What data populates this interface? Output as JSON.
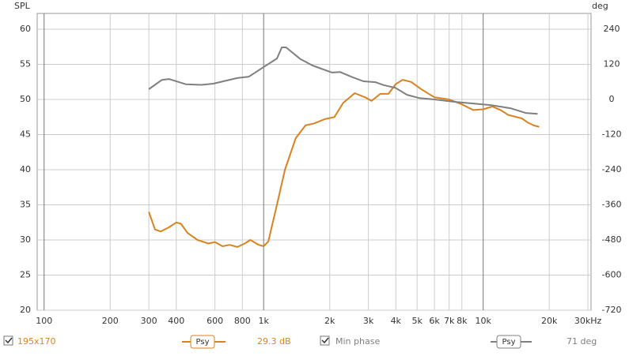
{
  "chart_data": {
    "type": "line",
    "y_label": "SPL",
    "y2_label": "deg",
    "log_x": true,
    "grid": true,
    "xlim": [
      93,
      31000
    ],
    "ylim": [
      20,
      62.25
    ],
    "y2lim": [
      -720,
      294
    ],
    "xticks": [
      100,
      200,
      300,
      400,
      600,
      800,
      {
        "value": 1000,
        "label": "1k"
      },
      {
        "value": 2000,
        "label": "2k"
      },
      {
        "value": 3000,
        "label": "3k"
      },
      {
        "value": 4000,
        "label": "4k"
      },
      {
        "value": 5000,
        "label": "5k"
      },
      {
        "value": 6000,
        "label": "6k"
      },
      {
        "value": 7000,
        "label": "7k"
      },
      {
        "value": 8000,
        "label": "8k"
      },
      {
        "value": 10000,
        "label": "10k"
      },
      {
        "value": 20000,
        "label": "20k"
      },
      {
        "value": 30000,
        "label": "30kHz"
      }
    ],
    "yticks": [
      20,
      25,
      30,
      35,
      40,
      45,
      50,
      55,
      60
    ],
    "y2ticks": [
      -720,
      -600,
      -480,
      -360,
      -240,
      -120,
      0,
      120,
      240
    ],
    "series": [
      {
        "color": "#d9831f",
        "axis": "y",
        "x": [
          300,
          320,
          340,
          370,
          400,
          420,
          450,
          500,
          560,
          600,
          650,
          700,
          760,
          820,
          870,
          950,
          1000,
          1050,
          1150,
          1250,
          1400,
          1550,
          1700,
          1900,
          2100,
          2300,
          2600,
          2900,
          3100,
          3400,
          3700,
          4000,
          4300,
          4700,
          5200,
          6000,
          7000,
          8000,
          9000,
          10000,
          11000,
          12000,
          13000,
          15000,
          16000,
          17000,
          18000
        ],
        "values": [
          34,
          31.5,
          31.2,
          31.8,
          32.5,
          32.3,
          31,
          30,
          29.5,
          29.7,
          29.1,
          29.3,
          29,
          29.5,
          30,
          29.3,
          29.1,
          29.8,
          35,
          40,
          44.5,
          46.3,
          46.6,
          47.2,
          47.5,
          49.5,
          50.9,
          50.3,
          49.8,
          50.8,
          50.8,
          52.2,
          52.8,
          52.5,
          51.5,
          50.3,
          50,
          49.3,
          48.5,
          48.6,
          49,
          48.5,
          47.8,
          47.3,
          46.7,
          46.3,
          46.1
        ]
      },
      {
        "color": "#7f7f7f",
        "axis": "y2",
        "x": [
          300,
          344,
          370,
          442,
          521,
          590,
          757,
          857,
          1000,
          1150,
          1210,
          1265,
          1470,
          1670,
          2050,
          2230,
          2500,
          2850,
          3230,
          3520,
          3980,
          4500,
          5110,
          6000,
          7400,
          9100,
          10800,
          13300,
          15600,
          17700
        ],
        "values": [
          35,
          67,
          70,
          52,
          50,
          54,
          73,
          78,
          111,
          140,
          178,
          178,
          138,
          116,
          92,
          94,
          78,
          62,
          59,
          49,
          40,
          16,
          5,
          0,
          -8,
          -14,
          -19,
          -30,
          -46,
          -49
        ]
      }
    ]
  },
  "footer": {
    "size": "195x170",
    "smoothing_1": "Psy",
    "spl_value": "29.3 dB",
    "min_phase": "Min phase",
    "smoothing_2": "Psy",
    "phase_value": "71 deg"
  }
}
